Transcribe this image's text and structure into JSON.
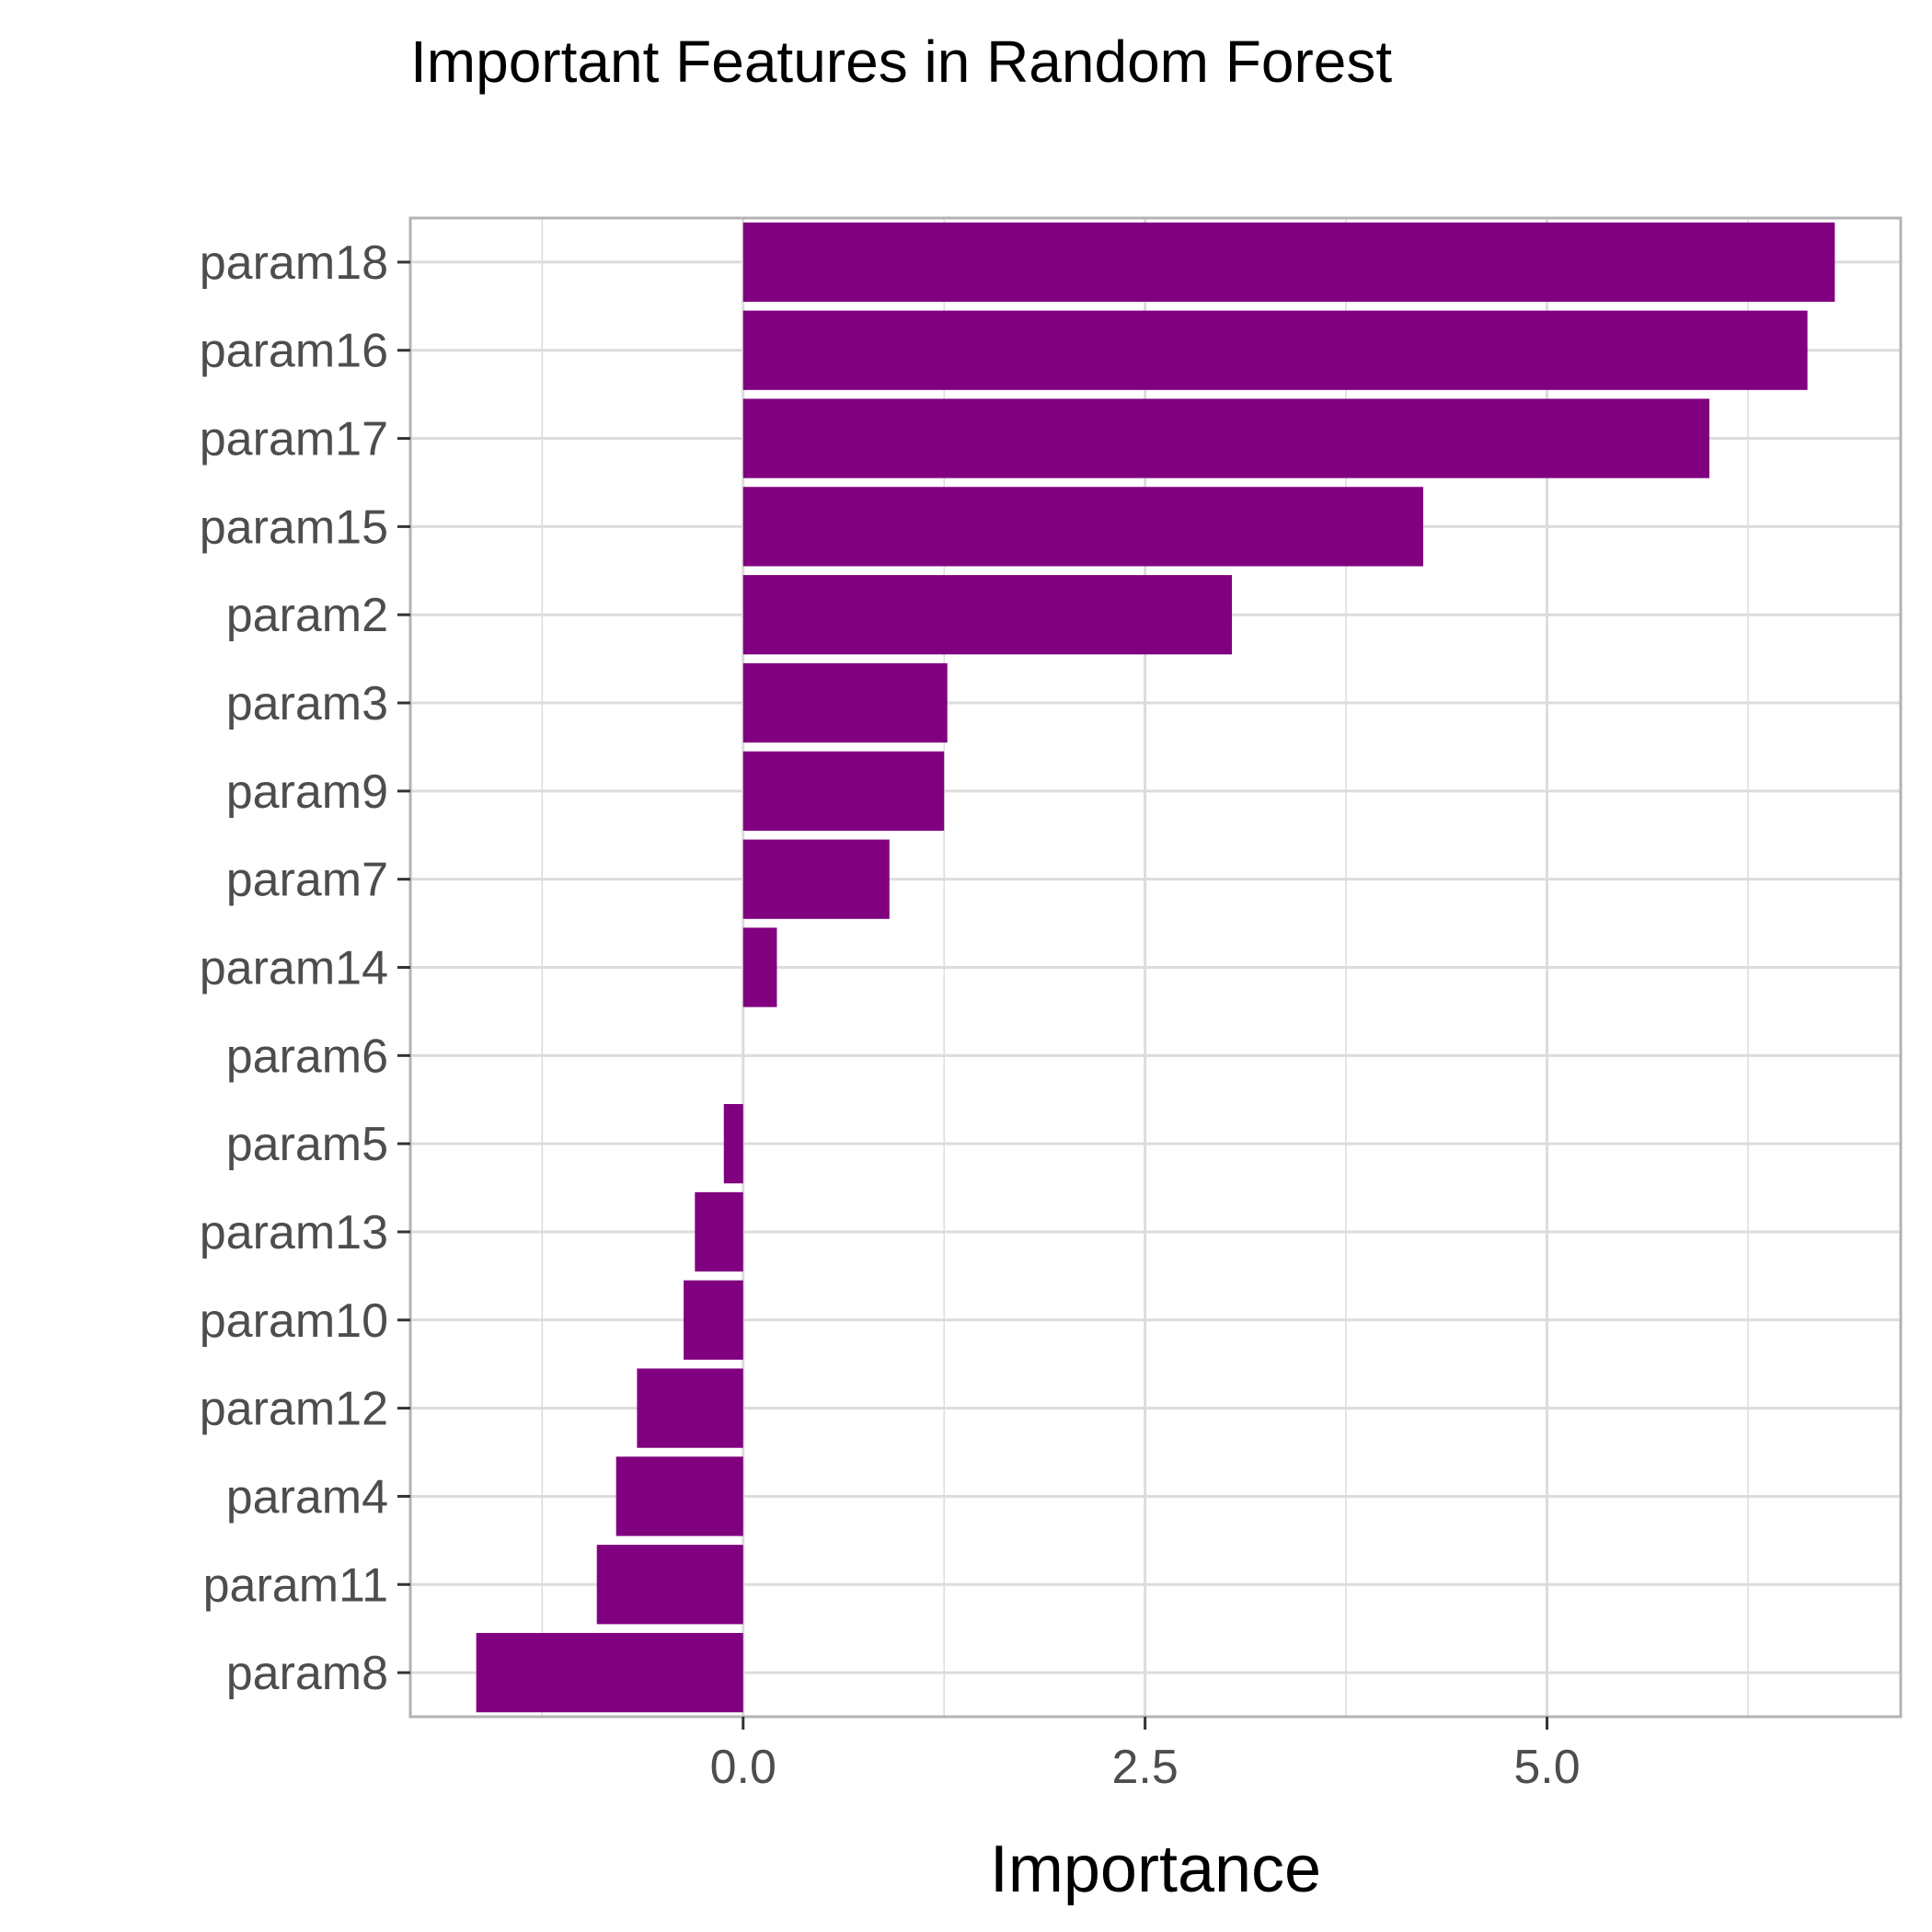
{
  "chart_data": {
    "type": "bar",
    "orientation": "horizontal",
    "title": "Important Features in Random Forest",
    "xlabel": "Importance",
    "ylabel": "",
    "categories": [
      "param18",
      "param16",
      "param17",
      "param15",
      "param2",
      "param3",
      "param9",
      "param7",
      "param14",
      "param6",
      "param5",
      "param13",
      "param10",
      "param12",
      "param4",
      "param11",
      "param8"
    ],
    "values": [
      6.79,
      6.62,
      6.01,
      4.23,
      3.04,
      1.27,
      1.25,
      0.91,
      0.21,
      0.0,
      -0.12,
      -0.3,
      -0.37,
      -0.66,
      -0.79,
      -0.91,
      -1.66
    ],
    "xlim": [
      -2.07,
      7.2
    ],
    "xticks": [
      0.0,
      2.5,
      5.0
    ],
    "xtick_labels": [
      "0.0",
      "2.5",
      "5.0"
    ],
    "grid": true,
    "legend": "none",
    "bar_color": "#800080",
    "grid_color": "#dcdcdc",
    "panel_border_color": "#b3b3b3"
  }
}
